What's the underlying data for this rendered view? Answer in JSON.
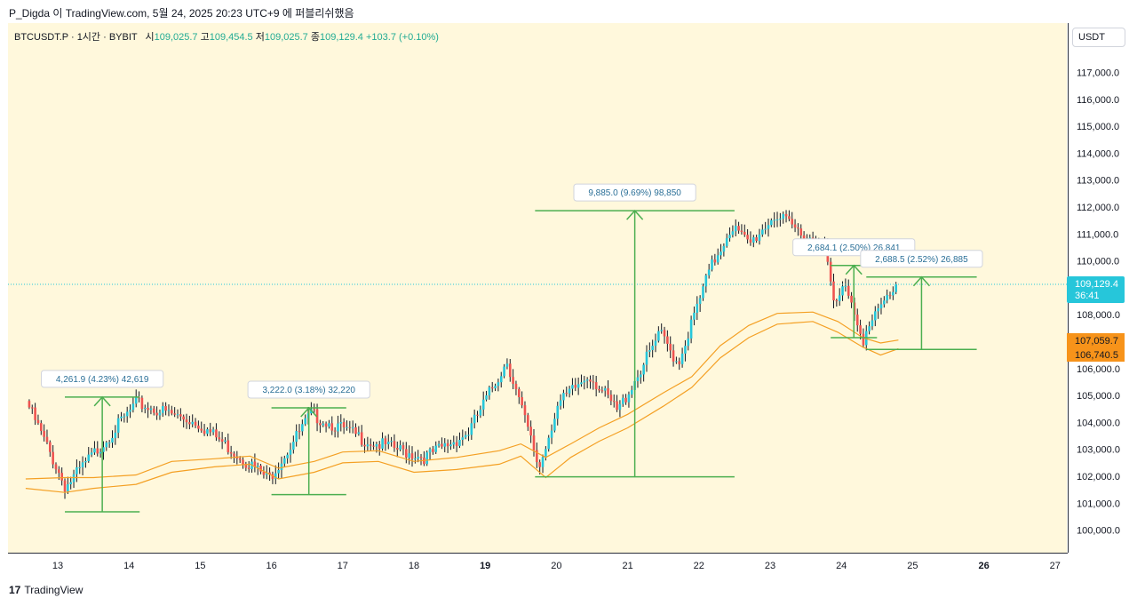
{
  "header": {
    "publish_text": "P_Digda 이 TradingView.com, 5월 24, 2025 20:23 UTC+9 에 퍼블리쉬했음"
  },
  "symbol_bar": {
    "symbol": "BTCUSDT.P · 1시간 · BYBIT",
    "open_label": "시",
    "open": "109,025.7",
    "high_label": "고",
    "high": "109,454.5",
    "low_label": "저",
    "low": "109,025.7",
    "close_label": "종",
    "close": "109,129.4",
    "change": "+103.7 (+0.10%)"
  },
  "currency_button": "USDT",
  "footer": {
    "logo": "17",
    "brand": "TradingView"
  },
  "colors": {
    "up": "#26c6da",
    "down": "#ef5350",
    "band": "#f4a024",
    "measure": "#4caf50",
    "price_tag": "#26c6da",
    "band_tag": "#f7931a"
  },
  "chart_data": {
    "type": "candlestick",
    "y_ticks": [
      "117,000.0",
      "116,000.0",
      "115,000.0",
      "114,000.0",
      "113,000.0",
      "112,000.0",
      "111,000.0",
      "110,000.0",
      "108,000.0",
      "106,000.0",
      "105,000.0",
      "104,000.0",
      "103,000.0",
      "102,000.0",
      "101,000.0",
      "100,000.0"
    ],
    "x_ticks": [
      {
        "t": 13,
        "label": "13",
        "bold": false
      },
      {
        "t": 14,
        "label": "14",
        "bold": false
      },
      {
        "t": 15,
        "label": "15",
        "bold": false
      },
      {
        "t": 16,
        "label": "16",
        "bold": false
      },
      {
        "t": 17,
        "label": "17",
        "bold": false
      },
      {
        "t": 18,
        "label": "18",
        "bold": false
      },
      {
        "t": 19,
        "label": "19",
        "bold": true
      },
      {
        "t": 20,
        "label": "20",
        "bold": false
      },
      {
        "t": 21,
        "label": "21",
        "bold": false
      },
      {
        "t": 22,
        "label": "22",
        "bold": false
      },
      {
        "t": 23,
        "label": "23",
        "bold": false
      },
      {
        "t": 24,
        "label": "24",
        "bold": false
      },
      {
        "t": 25,
        "label": "25",
        "bold": false
      },
      {
        "t": 26,
        "label": "26",
        "bold": true
      },
      {
        "t": 27,
        "label": "27",
        "bold": false
      }
    ],
    "price_line": {
      "price": 109129.4,
      "label": "109,129.4",
      "countdown": "36:41"
    },
    "band_tags": [
      {
        "price": 107059.7,
        "label": "107,059.7"
      },
      {
        "price": 106740.5,
        "label": "106,740.5"
      }
    ],
    "measurements": [
      {
        "label": "4,261.9 (4.23%) 42,619",
        "t0": 13.1,
        "t1": 14.15,
        "low": 100680,
        "high": 104942
      },
      {
        "label": "3,222.0 (3.18%) 32,220",
        "t0": 16.0,
        "t1": 17.05,
        "low": 101320,
        "high": 104540
      },
      {
        "label": "9,885.0 (9.69%) 98,850",
        "t0": 19.7,
        "t1": 22.5,
        "low": 101980,
        "high": 111865
      },
      {
        "label": "2,684.1 (2.50%) 26,841",
        "t0": 23.85,
        "t1": 24.5,
        "low": 107150,
        "high": 109830
      },
      {
        "label": "2,688.5 (2.52%) 26,885",
        "t0": 24.35,
        "t1": 25.9,
        "low": 106710,
        "high": 109400
      }
    ],
    "key_points": [
      {
        "t": 12.6,
        "price": 104800
      },
      {
        "t": 13.15,
        "price": 101600
      },
      {
        "t": 14.15,
        "price": 104700
      },
      {
        "t": 15.0,
        "price": 104000
      },
      {
        "t": 16.0,
        "price": 101900
      },
      {
        "t": 16.6,
        "price": 104300
      },
      {
        "t": 17.4,
        "price": 103300
      },
      {
        "t": 18.2,
        "price": 102700
      },
      {
        "t": 18.8,
        "price": 103600
      },
      {
        "t": 19.35,
        "price": 106300
      },
      {
        "t": 19.8,
        "price": 102300
      },
      {
        "t": 20.05,
        "price": 104600
      },
      {
        "t": 20.5,
        "price": 105800
      },
      {
        "t": 20.9,
        "price": 104400
      },
      {
        "t": 21.5,
        "price": 107300
      },
      {
        "t": 21.75,
        "price": 106200
      },
      {
        "t": 22.2,
        "price": 109700
      },
      {
        "t": 22.5,
        "price": 111300
      },
      {
        "t": 22.75,
        "price": 110600
      },
      {
        "t": 23.1,
        "price": 111700
      },
      {
        "t": 23.5,
        "price": 111000
      },
      {
        "t": 23.8,
        "price": 110600
      },
      {
        "t": 23.95,
        "price": 108200
      },
      {
        "t": 24.1,
        "price": 109200
      },
      {
        "t": 24.35,
        "price": 107100
      },
      {
        "t": 24.6,
        "price": 108300
      },
      {
        "t": 24.8,
        "price": 109100
      }
    ],
    "band_upper": [
      [
        12.55,
        101900
      ],
      [
        13.1,
        101950
      ],
      [
        13.5,
        101950
      ],
      [
        14.1,
        102050
      ],
      [
        14.6,
        102550
      ],
      [
        15.2,
        102650
      ],
      [
        15.7,
        102750
      ],
      [
        16.1,
        102300
      ],
      [
        16.6,
        102550
      ],
      [
        17.0,
        102900
      ],
      [
        17.5,
        102950
      ],
      [
        18.0,
        102550
      ],
      [
        18.6,
        102700
      ],
      [
        19.2,
        102950
      ],
      [
        19.5,
        103200
      ],
      [
        19.85,
        102700
      ],
      [
        20.2,
        103200
      ],
      [
        20.6,
        103800
      ],
      [
        21.0,
        104300
      ],
      [
        21.5,
        105100
      ],
      [
        21.9,
        105700
      ],
      [
        22.3,
        106850
      ],
      [
        22.7,
        107600
      ],
      [
        23.1,
        108050
      ],
      [
        23.6,
        108100
      ],
      [
        23.95,
        107750
      ],
      [
        24.3,
        107150
      ],
      [
        24.55,
        106950
      ],
      [
        24.8,
        107059.7
      ]
    ],
    "band_lower": [
      [
        12.55,
        101550
      ],
      [
        13.1,
        101400
      ],
      [
        13.5,
        101550
      ],
      [
        14.1,
        101700
      ],
      [
        14.6,
        102150
      ],
      [
        15.2,
        102350
      ],
      [
        15.7,
        102450
      ],
      [
        16.1,
        101900
      ],
      [
        16.6,
        102150
      ],
      [
        17.0,
        102500
      ],
      [
        17.5,
        102550
      ],
      [
        18.0,
        102150
      ],
      [
        18.6,
        102250
      ],
      [
        19.2,
        102450
      ],
      [
        19.5,
        102750
      ],
      [
        19.85,
        101950
      ],
      [
        20.2,
        102700
      ],
      [
        20.6,
        103300
      ],
      [
        21.0,
        103800
      ],
      [
        21.5,
        104600
      ],
      [
        21.9,
        105300
      ],
      [
        22.3,
        106400
      ],
      [
        22.7,
        107150
      ],
      [
        23.1,
        107650
      ],
      [
        23.6,
        107750
      ],
      [
        23.95,
        107350
      ],
      [
        24.3,
        106800
      ],
      [
        24.55,
        106500
      ],
      [
        24.8,
        106740.5
      ]
    ]
  }
}
